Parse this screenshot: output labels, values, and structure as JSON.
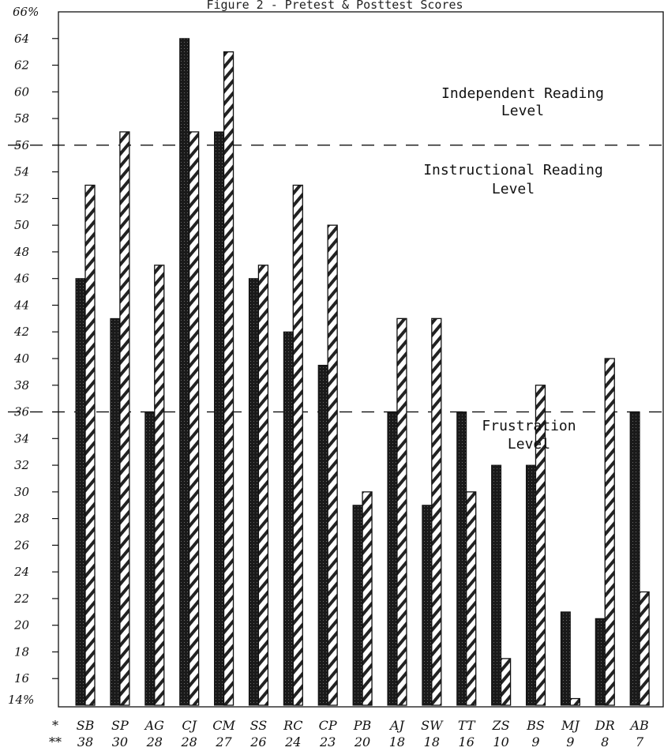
{
  "chart_data": {
    "type": "bar",
    "title": "Figure 2 - Pretest & Posttest Scores",
    "y_axis_top_label": "66%",
    "y_axis_bottom_label": "14%",
    "y_tick_labels": [
      "16",
      "18",
      "20",
      "22",
      "24",
      "26",
      "28",
      "30",
      "32",
      "34",
      "36",
      "38",
      "40",
      "42",
      "44",
      "46",
      "48",
      "50",
      "52",
      "54",
      "56",
      "58",
      "60",
      "62",
      "64"
    ],
    "ylim": [
      14,
      66
    ],
    "row1_marker": "*",
    "row2_marker": "**",
    "categories": [
      "SB",
      "SP",
      "AG",
      "CJ",
      "CM",
      "SS",
      "RC",
      "CP",
      "PB",
      "AJ",
      "SW",
      "TT",
      "ZS",
      "BS",
      "MJ",
      "DR",
      "AB"
    ],
    "secondary_labels": [
      "38",
      "30",
      "28",
      "28",
      "27",
      "26",
      "24",
      "23",
      "20",
      "18",
      "18",
      "16",
      "10",
      "9",
      "9",
      "8",
      "7"
    ],
    "series": [
      {
        "style": "solid-dark",
        "values": [
          46,
          43,
          36,
          64,
          57,
          46,
          42,
          39.5,
          29,
          36,
          29,
          36,
          32,
          32,
          21,
          20.5,
          36
        ]
      },
      {
        "style": "hatched",
        "values": [
          53,
          57,
          47,
          57,
          63,
          47,
          53,
          50,
          30,
          43,
          43,
          30,
          17.5,
          38,
          14.5,
          40,
          22.5
        ]
      }
    ],
    "reference_lines": [
      56,
      36
    ],
    "annotations": [
      {
        "lines": [
          "Independent Reading",
          "Level"
        ]
      },
      {
        "lines": [
          "Instructional Reading",
          "Level"
        ]
      },
      {
        "lines": [
          "Frustration",
          "Level"
        ]
      }
    ],
    "grid": false,
    "legend": "none",
    "colors": {
      "dark": "#1a1a1a",
      "hatch": "#222222",
      "background": "#ffffff"
    }
  }
}
